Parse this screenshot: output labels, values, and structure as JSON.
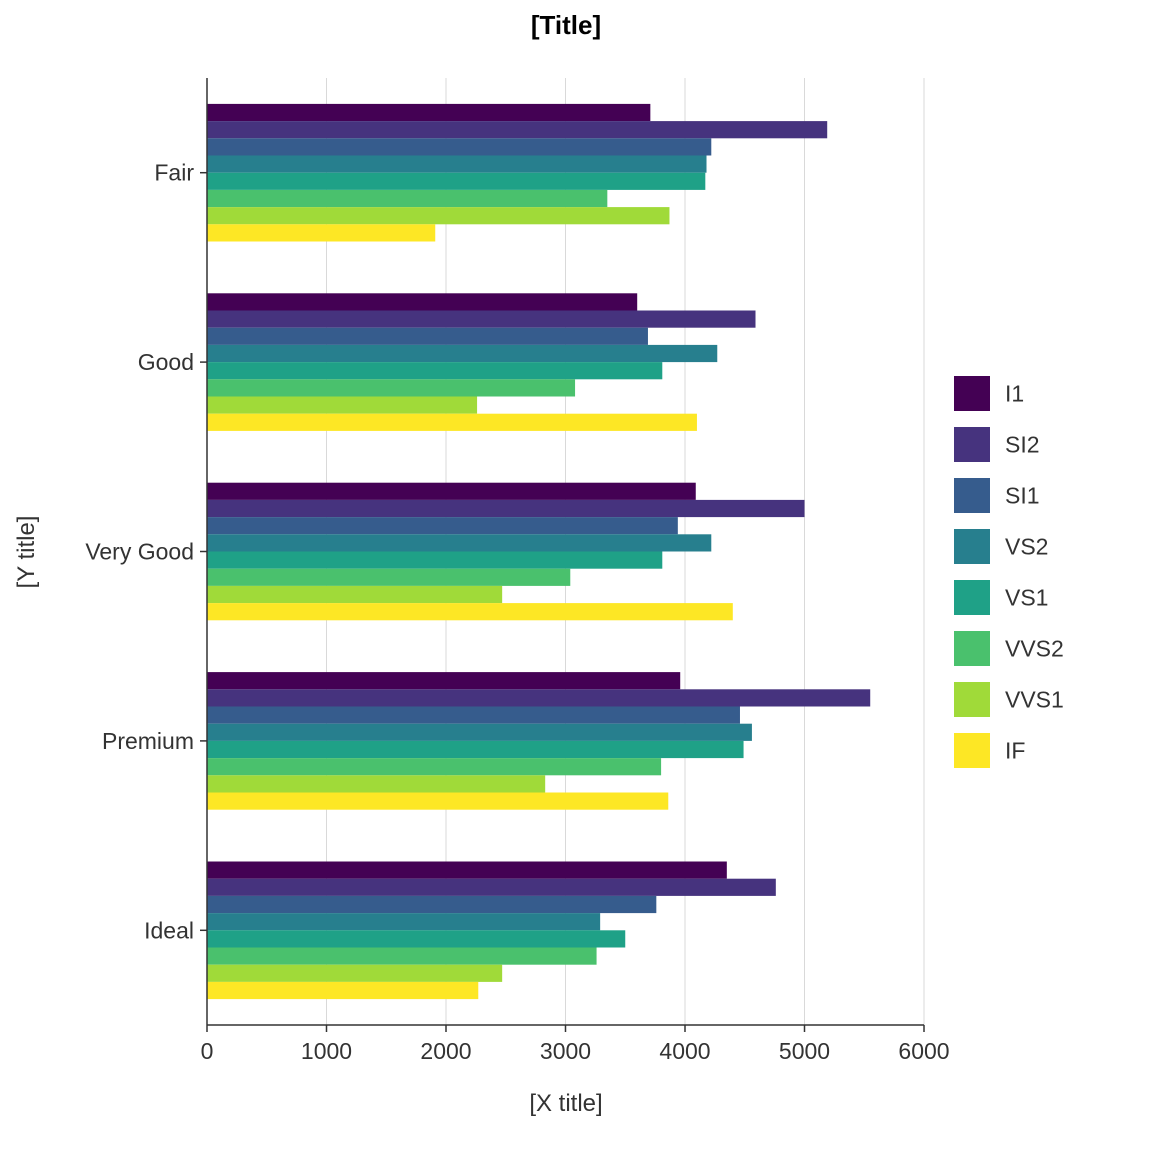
{
  "chart_data": {
    "type": "bar",
    "orientation": "horizontal",
    "title": "[Title]",
    "xlabel": "[X title]",
    "ylabel": "[Y title]",
    "xlim": [
      0,
      6000
    ],
    "xticks": [
      0,
      1000,
      2000,
      3000,
      4000,
      5000,
      6000
    ],
    "grid": true,
    "legend_position": "right",
    "categories": [
      "Fair",
      "Good",
      "Very Good",
      "Premium",
      "Ideal"
    ],
    "series": [
      {
        "name": "I1",
        "color": "#440154",
        "values": [
          3710,
          3600,
          4090,
          3960,
          4350
        ]
      },
      {
        "name": "SI2",
        "color": "#46337E",
        "values": [
          5190,
          4590,
          5000,
          5550,
          4760
        ]
      },
      {
        "name": "SI1",
        "color": "#365C8D",
        "values": [
          4220,
          3690,
          3940,
          4460,
          3760
        ]
      },
      {
        "name": "VS2",
        "color": "#277F8E",
        "values": [
          4180,
          4270,
          4220,
          4560,
          3290
        ]
      },
      {
        "name": "VS1",
        "color": "#1FA187",
        "values": [
          4170,
          3810,
          3810,
          4490,
          3500
        ]
      },
      {
        "name": "VVS2",
        "color": "#4AC16D",
        "values": [
          3350,
          3080,
          3040,
          3800,
          3260
        ]
      },
      {
        "name": "VVS1",
        "color": "#A0DA39",
        "values": [
          3870,
          2260,
          2470,
          2830,
          2470
        ]
      },
      {
        "name": "IF",
        "color": "#FDE725",
        "values": [
          1910,
          4100,
          4400,
          3860,
          2270
        ]
      }
    ]
  }
}
